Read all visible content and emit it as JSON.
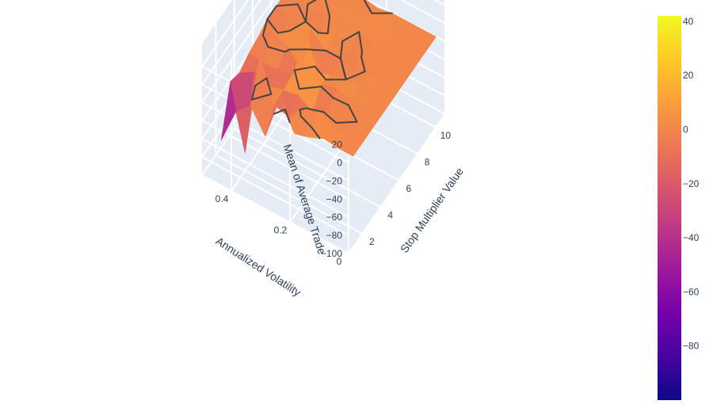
{
  "chart_data": {
    "type": "surface",
    "title": "",
    "axes": {
      "x": {
        "label": "Stop Multiplier Value",
        "ticks": [
          2,
          4,
          6,
          8,
          10
        ],
        "range": [
          0.5,
          11
        ]
      },
      "y": {
        "label": "Annualized Volatility",
        "ticks": [
          0,
          0.2,
          0.4
        ],
        "range": [
          0,
          0.5
        ]
      },
      "z": {
        "label": "Mean of Average Trade",
        "ticks": [
          -100,
          -80,
          -60,
          -40,
          -20,
          0,
          20
        ],
        "range": [
          -100,
          45
        ]
      }
    },
    "colorscale": {
      "name": "Plasma",
      "colors": [
        "#0d0887",
        "#46039f",
        "#7201a8",
        "#9c179e",
        "#bd3786",
        "#d8576b",
        "#ed7953",
        "#fb9f3a",
        "#fdca26",
        "#f0f921"
      ],
      "cmin": -100,
      "cmax": 42,
      "ticks": [
        -80,
        -60,
        -40,
        -20,
        0,
        20,
        40
      ]
    },
    "surface": {
      "x": [
        1,
        2,
        3,
        4,
        5,
        6,
        7,
        8,
        9,
        10
      ],
      "y": [
        0.0,
        0.05,
        0.1,
        0.15,
        0.2,
        0.25,
        0.3,
        0.35,
        0.4,
        0.45
      ],
      "z": [
        [
          0,
          0,
          0,
          0,
          0,
          0,
          0,
          0,
          0,
          0
        ],
        [
          0,
          0,
          0,
          0,
          0,
          0,
          0,
          0,
          0,
          0
        ],
        [
          2,
          1,
          -2,
          1,
          2,
          1,
          0,
          1,
          0,
          0
        ],
        [
          -5,
          10,
          -8,
          5,
          0,
          -2,
          1,
          0,
          5,
          0
        ],
        [
          -10,
          5,
          -15,
          2,
          -3,
          0,
          -5,
          0,
          2,
          -3
        ],
        [
          20,
          -15,
          -5,
          40,
          -10,
          0,
          5,
          3,
          0,
          0
        ],
        [
          -30,
          -10,
          -8,
          -5,
          -15,
          15,
          -5,
          0,
          2,
          0
        ],
        [
          -5,
          35,
          -12,
          -8,
          3,
          8,
          0,
          -2,
          0,
          0
        ],
        [
          -20,
          -80,
          -5,
          -10,
          10,
          -8,
          -5,
          2,
          0,
          0
        ],
        [
          -60,
          -10,
          -15,
          -8,
          -5,
          0,
          0,
          0,
          0,
          0
        ]
      ],
      "contour_level": 0,
      "contour_color": "#444444"
    },
    "grid": true,
    "background": "#e5ecf6",
    "gridline_color": "#ffffff",
    "legend": "none"
  }
}
